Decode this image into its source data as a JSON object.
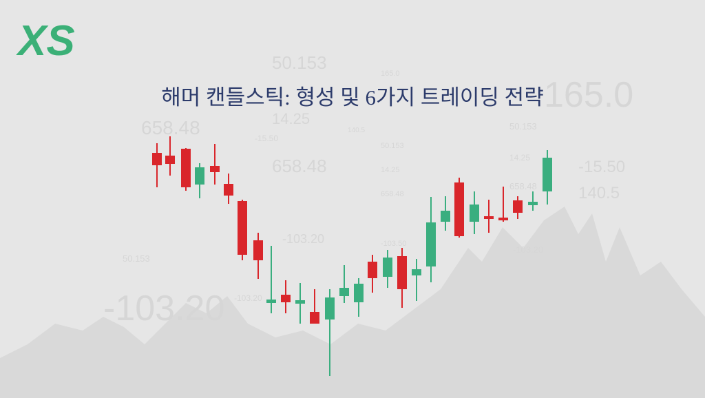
{
  "logo": "XS",
  "title": "해머 캔들스틱: 형성 및 6가지 트레이딩 전략",
  "background_numbers": [
    "50.153",
    "165.0",
    "165.0",
    "14.25",
    "658.48",
    "140.5",
    "-15.50",
    "50.153",
    "50.153",
    "658.48",
    "14.25",
    "14.25",
    "-15.50",
    "658.48",
    "658.48",
    "140.5",
    "-103.20",
    "-103.50",
    "-103.20",
    "-103.20",
    "50.153",
    "-103.20"
  ]
}
